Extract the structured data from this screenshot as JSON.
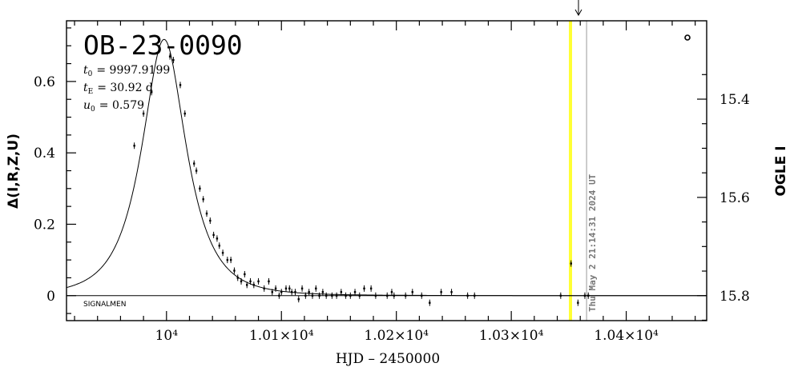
{
  "chart_data": {
    "type": "scatter",
    "title": "OB-23-0090",
    "xlabel": "HJD – 2450000",
    "ylabel": "Δ(I,R,Z,U)",
    "ylabel_right": "OGLE I",
    "xlim": [
      9913,
      10470
    ],
    "ylim": [
      -0.07,
      0.77
    ],
    "xticks": [
      10000,
      10100,
      10200,
      10300,
      10400
    ],
    "xtick_labels": [
      "10⁴",
      "1.01×10⁴",
      "1.02×10⁴",
      "1.03×10⁴",
      "1.04×10⁴"
    ],
    "yticks": [
      0,
      0.2,
      0.4,
      0.6
    ],
    "ytick_labels": [
      "0",
      "0.2",
      "0.4",
      "0.6"
    ],
    "yticks_right": [
      15.4,
      15.6,
      15.8
    ],
    "ytick_right_labels": [
      "15.4",
      "15.6",
      "15.8"
    ],
    "params": [
      {
        "name": "t",
        "sub": "0",
        "value": "= 9997.9199"
      },
      {
        "name": "t",
        "sub": "E",
        "value": "= 30.92 d"
      },
      {
        "name": "u",
        "sub": "0",
        "value": "= 0.579"
      }
    ],
    "model": {
      "t0": 9997.92,
      "tE": 30.92,
      "u0": 0.579
    },
    "grid": false,
    "points": [
      [
        9972,
        0.42
      ],
      [
        9980,
        0.51
      ],
      [
        9987,
        0.57
      ],
      [
        10003,
        0.67
      ],
      [
        10006,
        0.66
      ],
      [
        10012,
        0.59
      ],
      [
        10016,
        0.51
      ],
      [
        10024,
        0.37
      ],
      [
        10026,
        0.35
      ],
      [
        10029,
        0.3
      ],
      [
        10032,
        0.27
      ],
      [
        10035,
        0.23
      ],
      [
        10038,
        0.21
      ],
      [
        10041,
        0.17
      ],
      [
        10044,
        0.16
      ],
      [
        10046,
        0.14
      ],
      [
        10049,
        0.12
      ],
      [
        10053,
        0.1
      ],
      [
        10056,
        0.1
      ],
      [
        10059,
        0.07
      ],
      [
        10062,
        0.05
      ],
      [
        10065,
        0.04
      ],
      [
        10068,
        0.06
      ],
      [
        10070,
        0.03
      ],
      [
        10073,
        0.04
      ],
      [
        10076,
        0.03
      ],
      [
        10080,
        0.04
      ],
      [
        10085,
        0.02
      ],
      [
        10089,
        0.04
      ],
      [
        10092,
        0.01
      ],
      [
        10095,
        0.02
      ],
      [
        10098,
        0.0
      ],
      [
        10100,
        0.01
      ],
      [
        10104,
        0.02
      ],
      [
        10107,
        0.02
      ],
      [
        10109,
        0.01
      ],
      [
        10112,
        0.01
      ],
      [
        10115,
        -0.01
      ],
      [
        10118,
        0.02
      ],
      [
        10121,
        0.0
      ],
      [
        10124,
        0.01
      ],
      [
        10127,
        0.0
      ],
      [
        10130,
        0.02
      ],
      [
        10133,
        0.0
      ],
      [
        10136,
        0.01
      ],
      [
        10139,
        0.0
      ],
      [
        10144,
        0.0
      ],
      [
        10148,
        0.0
      ],
      [
        10152,
        0.01
      ],
      [
        10156,
        0.0
      ],
      [
        10160,
        0.0
      ],
      [
        10164,
        0.01
      ],
      [
        10168,
        0.0
      ],
      [
        10172,
        0.02
      ],
      [
        10178,
        0.02
      ],
      [
        10182,
        0.0
      ],
      [
        10192,
        0.0
      ],
      [
        10196,
        0.01
      ],
      [
        10198,
        0.0
      ],
      [
        10208,
        0.0
      ],
      [
        10214,
        0.01
      ],
      [
        10222,
        0.0
      ],
      [
        10229,
        -0.02
      ],
      [
        10239,
        0.01
      ],
      [
        10248,
        0.01
      ],
      [
        10262,
        0.0
      ],
      [
        10268,
        0.0
      ],
      [
        10343,
        0.0
      ],
      [
        10352,
        0.09
      ],
      [
        10358,
        -0.02
      ],
      [
        10364,
        0.0
      ],
      [
        10367,
        0.0
      ]
    ],
    "highlight_x": 10351.5,
    "stamp_x": 10365.5,
    "stamp": "Thu May  2 21:14:31 2024 UT",
    "footer_label": "SIGNALMEN",
    "colors": {
      "highlight": "#ffff33",
      "stamp_line": "#999999",
      "axes": "#000000"
    }
  }
}
